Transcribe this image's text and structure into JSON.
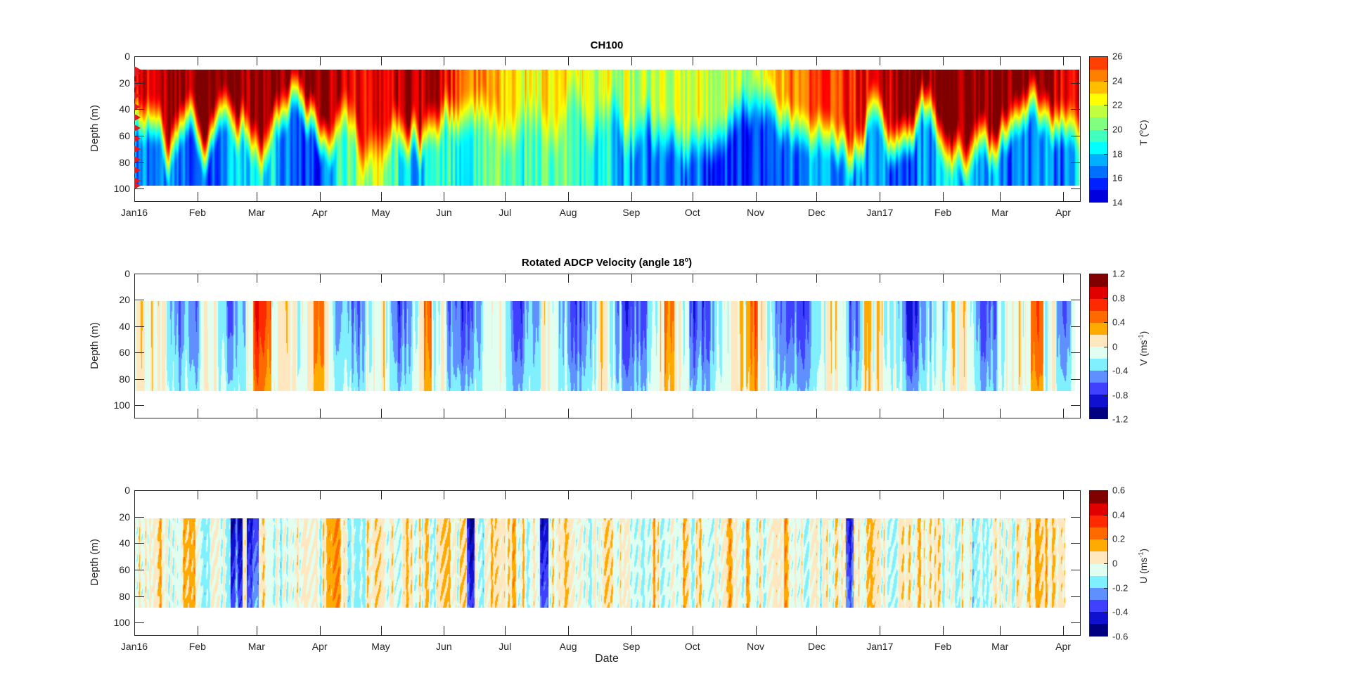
{
  "figure": {
    "xlabel": "Date"
  },
  "chart_data": [
    {
      "type": "heatmap",
      "title": "CH100",
      "ylabel": "Depth (m)",
      "xlabel": "",
      "xaxis": {
        "type": "date",
        "start": "2016-01-01",
        "end": "2017-04-10"
      },
      "ylim": [
        0,
        110
      ],
      "y_reversed": true,
      "yticks": [
        0,
        20,
        40,
        60,
        80,
        100
      ],
      "xticks": [
        {
          "date": "2016-01-01",
          "label": "Jan16"
        },
        {
          "date": "2016-02-01",
          "label": "Feb"
        },
        {
          "date": "2016-03-01",
          "label": "Mar"
        },
        {
          "date": "2016-04-01",
          "label": "Apr"
        },
        {
          "date": "2016-05-01",
          "label": "May"
        },
        {
          "date": "2016-06-01",
          "label": "Jun"
        },
        {
          "date": "2016-07-01",
          "label": "Jul"
        },
        {
          "date": "2016-08-01",
          "label": "Aug"
        },
        {
          "date": "2016-09-01",
          "label": "Sep"
        },
        {
          "date": "2016-10-01",
          "label": "Oct"
        },
        {
          "date": "2016-11-01",
          "label": "Nov"
        },
        {
          "date": "2016-12-01",
          "label": "Dec"
        },
        {
          "date": "2017-01-01",
          "label": "Jan17"
        },
        {
          "date": "2017-02-01",
          "label": "Feb"
        },
        {
          "date": "2017-03-01",
          "label": "Mar"
        },
        {
          "date": "2017-04-01",
          "label": "Apr"
        }
      ],
      "show_xtick_labels": true,
      "data_depth_range": [
        10,
        98
      ],
      "data_day_range": [
        0,
        464
      ],
      "colorbar": {
        "label_main": "T (",
        "label_sup": "o",
        "label_end": "C)",
        "clim": [
          14,
          26
        ],
        "ticks": [
          "26",
          "24",
          "22",
          "20",
          "18",
          "16",
          "14"
        ],
        "tick_values": [
          26,
          24,
          22,
          20,
          18,
          16,
          14
        ],
        "levels": 12,
        "colors": [
          "#00008f",
          "#0000df",
          "#0020ff",
          "#0070ff",
          "#00b0ff",
          "#00ffff",
          "#40ffbf",
          "#80ff80",
          "#bfff40",
          "#ffff00",
          "#ffbf00",
          "#ff8000",
          "#ff4000",
          "#ff0000"
        ]
      },
      "depth_markers": [
        10,
        13,
        21,
        30,
        38,
        46,
        54,
        62,
        70,
        78,
        86,
        94,
        98
      ],
      "surface_temp_days": [
        0,
        20,
        35,
        50,
        60,
        75,
        90,
        105,
        120,
        135,
        150,
        165,
        180,
        195,
        215,
        230,
        245,
        260,
        275,
        290,
        305,
        320,
        335,
        350,
        365,
        380,
        395,
        410,
        425,
        440,
        455,
        464
      ],
      "surface_temp_values": [
        24.5,
        25.5,
        26,
        26,
        26,
        26,
        26,
        25,
        24.5,
        26,
        25,
        23,
        22,
        21.5,
        21.5,
        21,
        20.5,
        20.5,
        21,
        21,
        20.5,
        23,
        23.5,
        24,
        25,
        26,
        26,
        26,
        26,
        26,
        25,
        25
      ],
      "bottom_temp_values": [
        17,
        17,
        16,
        18,
        19,
        17,
        16,
        20,
        21,
        18,
        19,
        19,
        19.5,
        19.5,
        19.5,
        18.5,
        17,
        16.5,
        16.5,
        16,
        16,
        17,
        17.5,
        17,
        17.5,
        16,
        18,
        18,
        17,
        17,
        17,
        19
      ]
    },
    {
      "type": "heatmap",
      "title_main": "Rotated ADCP Velocity (angle 18",
      "title_sup": "o",
      "title_end": ")",
      "ylabel": "Depth (m)",
      "xaxis": {
        "type": "date",
        "start": "2016-01-01",
        "end": "2017-04-10"
      },
      "ylim": [
        0,
        110
      ],
      "y_reversed": true,
      "yticks": [
        0,
        20,
        40,
        60,
        80,
        100
      ],
      "show_xtick_labels": false,
      "data_depth_range": [
        21,
        89
      ],
      "data_day_range": [
        0,
        462
      ],
      "colorbar": {
        "label_main": "V (ms",
        "label_sup": "-1",
        "label_end": ")",
        "clim": [
          -1.2,
          1.2
        ],
        "ticks": [
          "1.2",
          "0.8",
          "0.4",
          "0",
          "-0.4",
          "-0.8",
          "-1.2"
        ],
        "tick_values": [
          1.2,
          0.8,
          0.4,
          0,
          -0.4,
          -0.8,
          -1.2
        ],
        "levels": 12,
        "colors": [
          "#000080",
          "#1010d0",
          "#4040ff",
          "#6090ff",
          "#80f0ff",
          "#e0fff0",
          "#ffe8c0",
          "#ffaa00",
          "#ff6a00",
          "#ff2a00",
          "#e00000",
          "#800000"
        ]
      },
      "strong_southward_days": [
        [
          15,
          34
        ],
        [
          40,
          56
        ],
        [
          95,
          118
        ],
        [
          123,
          140
        ],
        [
          148,
          175
        ],
        [
          180,
          200
        ],
        [
          205,
          230
        ],
        [
          232,
          258
        ],
        [
          268,
          290
        ],
        [
          310,
          340
        ],
        [
          348,
          358
        ],
        [
          370,
          400
        ],
        [
          408,
          428
        ],
        [
          450,
          462
        ]
      ],
      "northward_days": [
        [
          58,
          67
        ],
        [
          88,
          93
        ],
        [
          142,
          146
        ],
        [
          260,
          265
        ],
        [
          300,
          306
        ],
        [
          440,
          446
        ]
      ]
    },
    {
      "type": "heatmap",
      "title": "",
      "ylabel": "Depth (m)",
      "xlabel": "Date",
      "xaxis": {
        "type": "date",
        "start": "2016-01-01",
        "end": "2017-04-10"
      },
      "ylim": [
        0,
        110
      ],
      "y_reversed": true,
      "yticks": [
        0,
        20,
        40,
        60,
        80,
        100
      ],
      "show_xtick_labels": true,
      "data_depth_range": [
        21,
        89
      ],
      "data_day_range": [
        0,
        457
      ],
      "colorbar": {
        "label_main": "U (ms",
        "label_sup": "-1",
        "label_end": ")",
        "clim": [
          -0.6,
          0.6
        ],
        "ticks": [
          "0.6",
          "0.4",
          "0.2",
          "0",
          "-0.2",
          "-0.4",
          "-0.6"
        ],
        "tick_values": [
          0.6,
          0.4,
          0.2,
          0,
          -0.2,
          -0.4,
          -0.6
        ],
        "levels": 12,
        "colors": [
          "#000080",
          "#1010d0",
          "#4040ff",
          "#6090ff",
          "#80f0ff",
          "#e0fff0",
          "#ffe8c0",
          "#ffaa00",
          "#ff6a00",
          "#ff2a00",
          "#e00000",
          "#800000"
        ]
      },
      "westward_events_days": [
        [
          48,
          52
        ],
        [
          56,
          60
        ],
        [
          164,
          166
        ],
        [
          200,
          202
        ],
        [
          350,
          352
        ]
      ]
    }
  ]
}
